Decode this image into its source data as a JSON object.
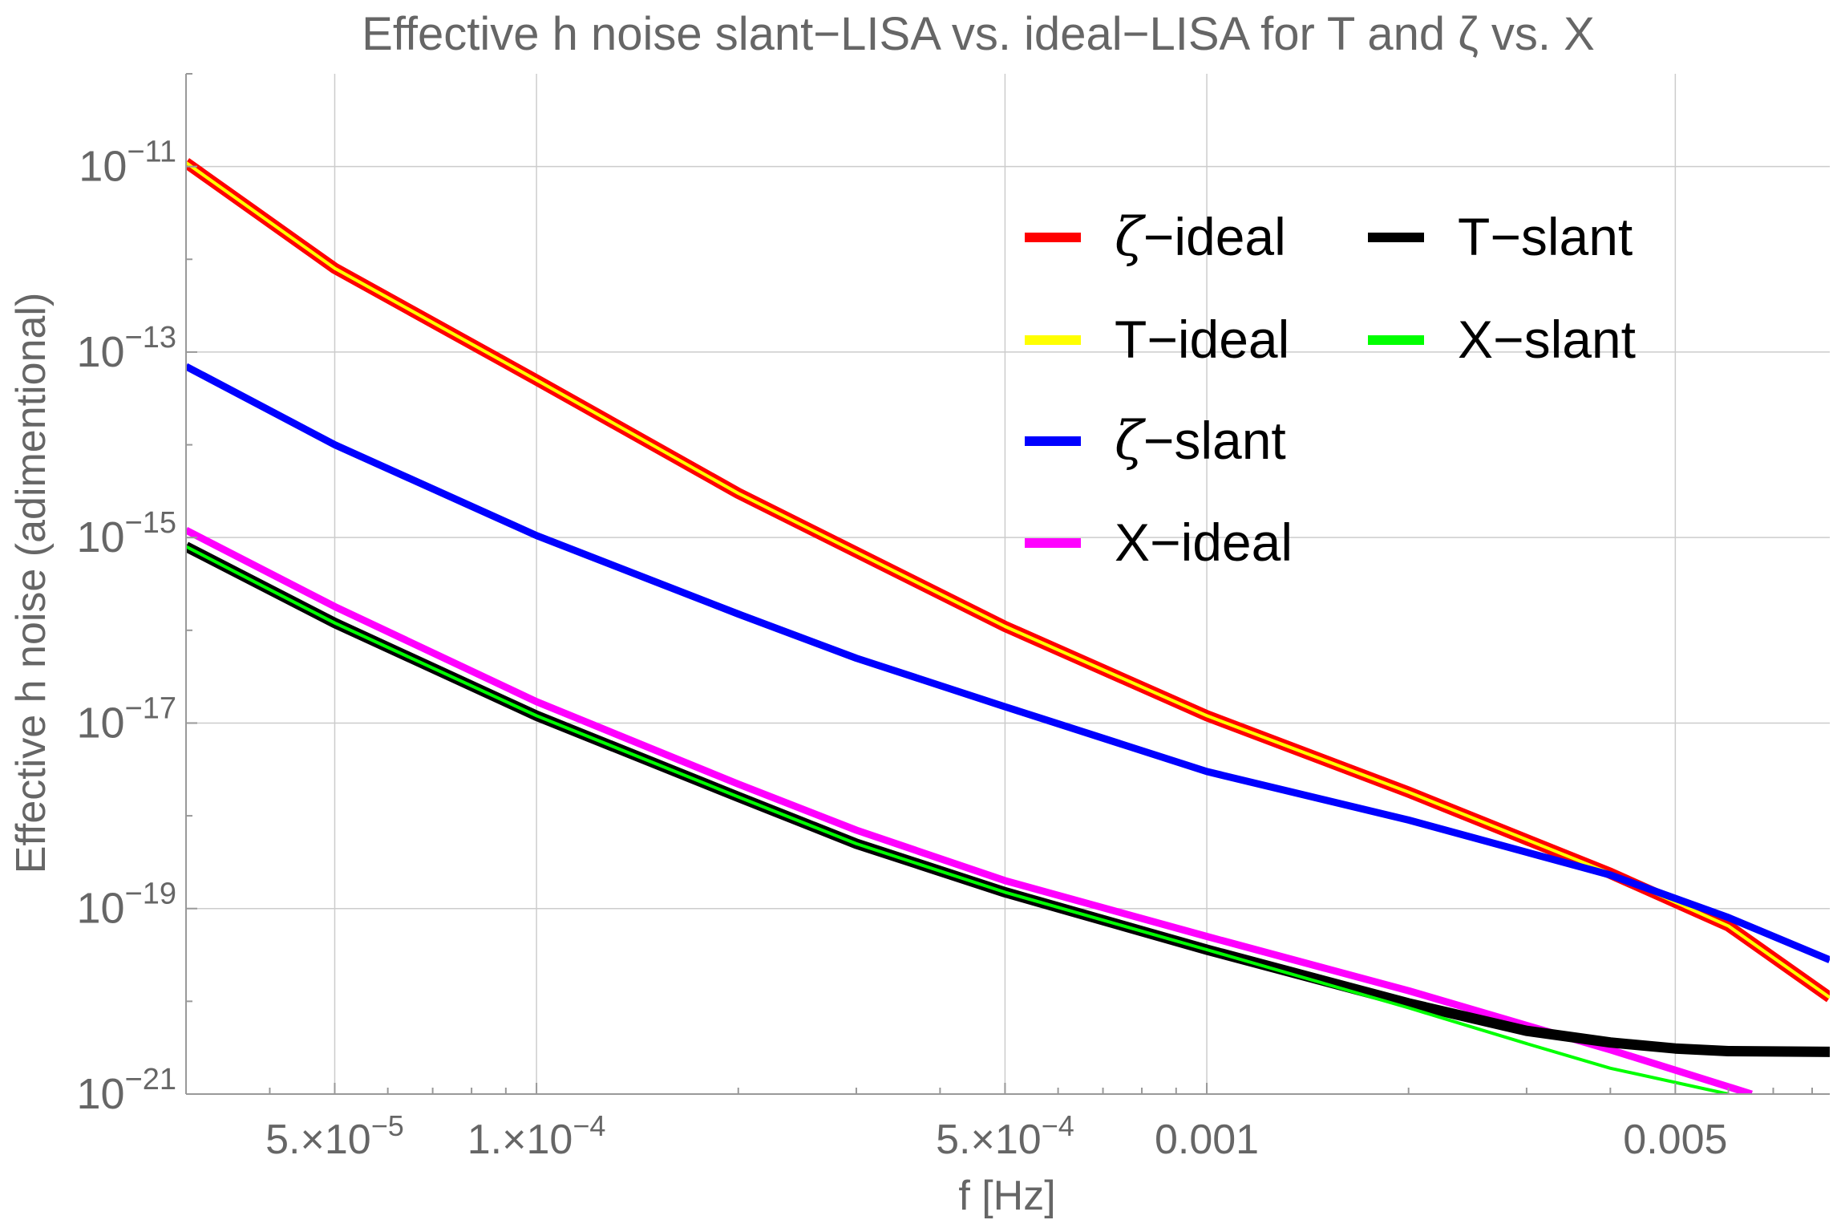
{
  "chart_data": {
    "type": "line",
    "title": "Effective h noise slant−LISA vs. ideal−LISA for T and ζ vs. X",
    "xlabel": "f [Hz]",
    "ylabel": "Effective h noise (adimentional)",
    "xscale": "log",
    "yscale": "log",
    "xlim": [
      3e-05,
      0.0085
    ],
    "ylim": [
      1e-21,
      1e-10
    ],
    "grid": true,
    "legend_position": "top-right",
    "x_ticks": [
      {
        "value": 5e-05,
        "mantissa": "5.",
        "times": "×",
        "base": "10",
        "exp": "−5"
      },
      {
        "value": 0.0001,
        "mantissa": "1.",
        "times": "×",
        "base": "10",
        "exp": "−4"
      },
      {
        "value": 0.0005,
        "mantissa": "5.",
        "times": "×",
        "base": "10",
        "exp": "−4"
      },
      {
        "value": 0.001,
        "mantissa": "0.001",
        "times": "",
        "base": "",
        "exp": ""
      },
      {
        "value": 0.005,
        "mantissa": "0.005",
        "times": "",
        "base": "",
        "exp": ""
      }
    ],
    "y_ticks": [
      {
        "value": 1e-11,
        "base": "10",
        "exp": "−11"
      },
      {
        "value": 1e-13,
        "base": "10",
        "exp": "−13"
      },
      {
        "value": 1e-15,
        "base": "10",
        "exp": "−15"
      },
      {
        "value": 1e-17,
        "base": "10",
        "exp": "−17"
      },
      {
        "value": 1e-19,
        "base": "10",
        "exp": "−19"
      },
      {
        "value": 1e-21,
        "base": "10",
        "exp": "−21"
      }
    ],
    "x_gridlines": [
      5e-05,
      0.0001,
      0.0005,
      0.001,
      0.005
    ],
    "y_gridlines": [
      1e-11,
      1e-13,
      1e-15,
      1e-17,
      1e-19,
      1e-21
    ],
    "series": [
      {
        "name": "ζ−ideal",
        "symbol": "ζ",
        "suffix": "−ideal",
        "color": "#ff0000",
        "width": 14,
        "x": [
          3e-05,
          5e-05,
          0.0001,
          0.0002,
          0.0005,
          0.001,
          0.002,
          0.004,
          0.006,
          0.0085
        ],
        "y": [
          1.1e-11,
          8e-13,
          5e-14,
          3e-15,
          1.1e-16,
          1.2e-17,
          1.8e-18,
          2.4e-19,
          6.5e-20,
          1.1e-20
        ]
      },
      {
        "name": "T−ideal",
        "symbol": "",
        "suffix": "T−ideal",
        "color": "#ffff00",
        "width": 4,
        "x": [
          3e-05,
          5e-05,
          0.0001,
          0.0002,
          0.0005,
          0.001,
          0.002,
          0.004,
          0.006,
          0.0085
        ],
        "y": [
          1.1e-11,
          8e-13,
          5e-14,
          3e-15,
          1.1e-16,
          1.2e-17,
          1.8e-18,
          2.4e-19,
          6.5e-20,
          1.1e-20
        ]
      },
      {
        "name": "ζ−slant",
        "symbol": "ζ",
        "suffix": "−slant",
        "color": "#0000ff",
        "width": 9,
        "x": [
          3e-05,
          5e-05,
          0.0001,
          0.0002,
          0.0003,
          0.0005,
          0.001,
          0.002,
          0.004,
          0.006,
          0.0085
        ],
        "y": [
          7e-14,
          1e-14,
          1.05e-15,
          1.5e-16,
          5e-17,
          1.5e-17,
          3e-18,
          9e-19,
          2.3e-19,
          8e-20,
          2.8e-20
        ]
      },
      {
        "name": "X−ideal",
        "symbol": "",
        "suffix": "X−ideal",
        "color": "#ff00ff",
        "width": 9,
        "x": [
          3e-05,
          5e-05,
          0.0001,
          0.0002,
          0.0003,
          0.0005,
          0.001,
          0.002,
          0.003,
          0.004,
          0.0065
        ],
        "y": [
          1.2e-15,
          1.8e-16,
          1.7e-17,
          2.2e-18,
          7e-19,
          2e-19,
          5e-20,
          1.3e-20,
          5.5e-21,
          3e-21,
          1e-21
        ]
      },
      {
        "name": "T−slant",
        "symbol": "",
        "suffix": "T−slant",
        "color": "#000000",
        "width": 13,
        "x": [
          3e-05,
          5e-05,
          0.0001,
          0.0002,
          0.0003,
          0.0005,
          0.001,
          0.002,
          0.003,
          0.004,
          0.005,
          0.006,
          0.0085
        ],
        "y": [
          8e-16,
          1.2e-16,
          1.2e-17,
          1.6e-18,
          5e-19,
          1.5e-19,
          3.6e-20,
          9.5e-21,
          4.8e-21,
          3.6e-21,
          3.1e-21,
          2.9e-21,
          2.85e-21
        ]
      },
      {
        "name": "X−slant",
        "symbol": "",
        "suffix": "X−slant",
        "color": "#00ff00",
        "width": 4,
        "x": [
          3e-05,
          5e-05,
          0.0001,
          0.0002,
          0.0003,
          0.0005,
          0.001,
          0.002,
          0.003,
          0.004,
          0.006
        ],
        "y": [
          8e-16,
          1.2e-16,
          1.2e-17,
          1.6e-18,
          5e-19,
          1.5e-19,
          3.6e-20,
          8.5e-21,
          3.5e-21,
          1.9e-21,
          1e-21
        ]
      }
    ],
    "legend": [
      {
        "series": "ζ−ideal",
        "symbol": "ζ",
        "suffix": "−ideal",
        "color": "#ff0000"
      },
      {
        "series": "T−ideal",
        "symbol": "",
        "suffix": "T−ideal",
        "color": "#ffff00"
      },
      {
        "series": "ζ−slant",
        "symbol": "ζ",
        "suffix": "−slant",
        "color": "#0000ff"
      },
      {
        "series": "X−ideal",
        "symbol": "",
        "suffix": "X−ideal",
        "color": "#ff00ff"
      },
      {
        "series": "T−slant",
        "symbol": "",
        "suffix": "T−slant",
        "color": "#000000"
      },
      {
        "series": "X−slant",
        "symbol": "",
        "suffix": "X−slant",
        "color": "#00ff00"
      }
    ],
    "colors": {
      "axis": "#999999",
      "grid": "#cccccc",
      "text": "#666666",
      "legend_text": "#000000"
    }
  }
}
